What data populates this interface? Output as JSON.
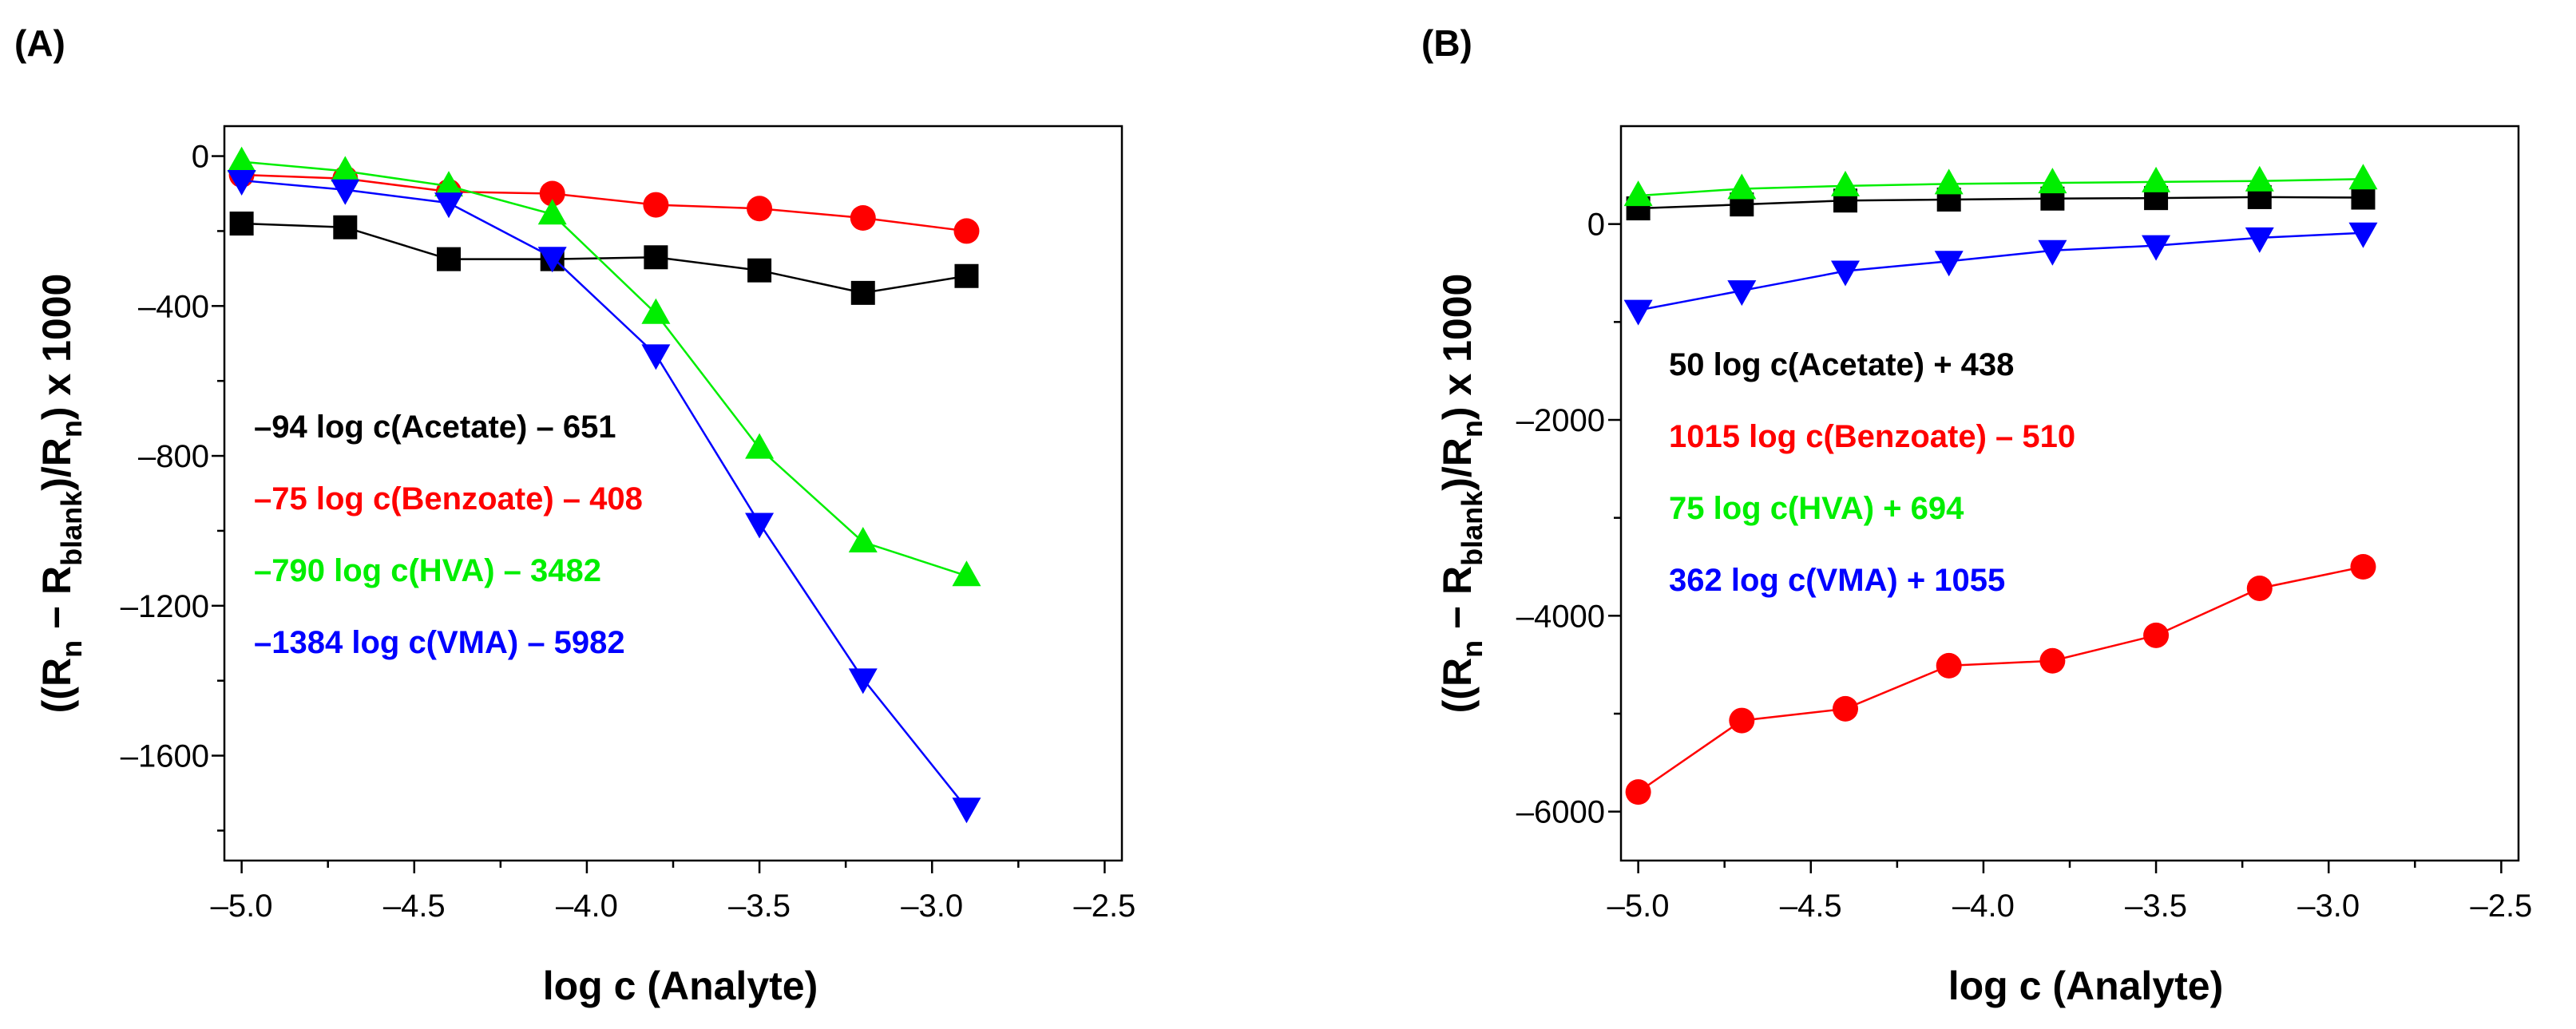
{
  "chart_data": [
    {
      "type": "line",
      "panel_label": "(A)",
      "xlabel": "log c (Analyte)",
      "ylabel": "((Rn − Rblank)/Rn) x 1000",
      "ylabel_parts": [
        "((R",
        "n",
        " − R",
        "blank",
        ")/R",
        "n",
        ") x 1000"
      ],
      "xlim": [
        -5.05,
        -2.45
      ],
      "ylim": [
        -1880,
        80
      ],
      "x_ticks": [
        -5.0,
        -4.5,
        -4.0,
        -3.5,
        -3.0,
        -2.5
      ],
      "x_tick_labels": [
        "–5.0",
        "–4.5",
        "–4.0",
        "–3.5",
        "–3.0",
        "–2.5"
      ],
      "y_ticks": [
        0,
        -400,
        -800,
        -1200,
        -1600
      ],
      "y_tick_labels": [
        "0",
        "–400",
        "–800",
        "–1200",
        "–1600"
      ],
      "x": [
        -5.0,
        -4.7,
        -4.4,
        -4.1,
        -3.8,
        -3.5,
        -3.2,
        -2.9
      ],
      "series": [
        {
          "name": "Acetate",
          "color": "#000000",
          "marker": "square",
          "values": [
            -180,
            -190,
            -275,
            -275,
            -270,
            -305,
            -365,
            -320
          ]
        },
        {
          "name": "Benzoate",
          "color": "#ff0000",
          "marker": "circle",
          "values": [
            -50,
            -60,
            -95,
            -100,
            -130,
            -140,
            -165,
            -200
          ]
        },
        {
          "name": "HVA",
          "color": "#00ee00",
          "marker": "triangle-up",
          "values": [
            -15,
            -40,
            -80,
            -155,
            -420,
            -780,
            -1030,
            -1120
          ]
        },
        {
          "name": "VMA",
          "color": "#0000ff",
          "marker": "triangle-down",
          "values": [
            -65,
            -90,
            -125,
            -270,
            -530,
            -980,
            -1395,
            -1740
          ]
        }
      ],
      "annotations": [
        {
          "text": "–94 log c(Acetate) – 651",
          "color": "#000000"
        },
        {
          "text": "–75 log c(Benzoate) – 408",
          "color": "#ff0000"
        },
        {
          "text": "–790 log c(HVA) – 3482",
          "color": "#00ee00"
        },
        {
          "text": "–1384 log c(VMA) – 5982",
          "color": "#0000ff"
        }
      ]
    },
    {
      "type": "line",
      "panel_label": "(B)",
      "xlabel": "log c (Analyte)",
      "ylabel": "((Rn − Rblank)/Rn) x 1000",
      "ylabel_parts": [
        "((R",
        "n",
        " − R",
        "blank",
        ")/R",
        "n",
        ") x 1000"
      ],
      "xlim": [
        -5.05,
        -2.45
      ],
      "ylim": [
        -6500,
        1000
      ],
      "x_ticks": [
        -5.0,
        -4.5,
        -4.0,
        -3.5,
        -3.0,
        -2.5
      ],
      "x_tick_labels": [
        "–5.0",
        "–4.5",
        "–4.0",
        "–3.5",
        "–3.0",
        "–2.5"
      ],
      "y_ticks": [
        0,
        -2000,
        -4000,
        -6000
      ],
      "y_tick_labels": [
        "0",
        "–2000",
        "–4000",
        "–6000"
      ],
      "x": [
        -5.0,
        -4.7,
        -4.4,
        -4.1,
        -3.8,
        -3.5,
        -3.2,
        -2.9
      ],
      "series": [
        {
          "name": "Acetate",
          "color": "#000000",
          "marker": "square",
          "values": [
            160,
            200,
            240,
            250,
            260,
            265,
            275,
            270
          ]
        },
        {
          "name": "Benzoate",
          "color": "#ff0000",
          "marker": "circle",
          "values": [
            -5800,
            -5070,
            -4950,
            -4510,
            -4460,
            -4200,
            -3720,
            -3500
          ]
        },
        {
          "name": "HVA",
          "color": "#00ee00",
          "marker": "triangle-up",
          "values": [
            290,
            360,
            390,
            410,
            420,
            430,
            440,
            460
          ]
        },
        {
          "name": "VMA",
          "color": "#0000ff",
          "marker": "triangle-down",
          "values": [
            -880,
            -680,
            -480,
            -380,
            -270,
            -220,
            -140,
            -90
          ]
        }
      ],
      "annotations": [
        {
          "text": "50 log c(Acetate) + 438",
          "color": "#000000"
        },
        {
          "text": "1015 log c(Benzoate) – 510",
          "color": "#ff0000"
        },
        {
          "text": "75 log c(HVA) + 694",
          "color": "#00ee00"
        },
        {
          "text": "362 log c(VMA) + 1055",
          "color": "#0000ff"
        }
      ]
    }
  ]
}
